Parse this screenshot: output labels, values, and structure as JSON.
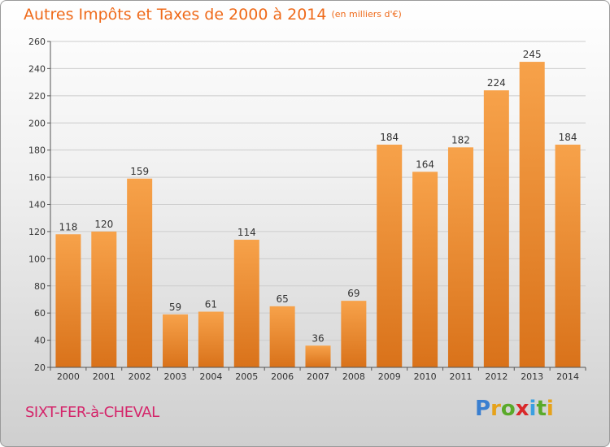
{
  "header": {
    "title": "Autres Impôts et Taxes de 2000 à 2014",
    "unit": "(en milliers d'€)"
  },
  "footer": {
    "place": "SIXT-FER-à-CHEVAL",
    "brand": "Proxiti",
    "brand_colors": [
      "#3a7fd0",
      "#e6a21a",
      "#5aaa2a",
      "#d9282a",
      "#3a9fe0",
      "#5aaa2a",
      "#e6a21a"
    ]
  },
  "colors": {
    "bar_light": "#f7a24a",
    "bar_dark": "#d9721a",
    "axis": "#555555",
    "grid": "#cccccc"
  },
  "chart_data": {
    "type": "bar",
    "title": "Autres Impôts et Taxes de 2000 à 2014",
    "subtitle": "(en milliers d'€)",
    "categories": [
      "2000",
      "2001",
      "2002",
      "2003",
      "2004",
      "2005",
      "2006",
      "2007",
      "2008",
      "2009",
      "2010",
      "2011",
      "2012",
      "2013",
      "2014"
    ],
    "values": [
      118,
      120,
      159,
      59,
      61,
      114,
      65,
      36,
      69,
      184,
      164,
      182,
      224,
      245,
      184
    ],
    "ylim": [
      20,
      260
    ],
    "yticks": [
      20,
      40,
      60,
      80,
      100,
      120,
      140,
      160,
      180,
      200,
      220,
      240,
      260
    ],
    "grid": true,
    "data_labels": true
  }
}
